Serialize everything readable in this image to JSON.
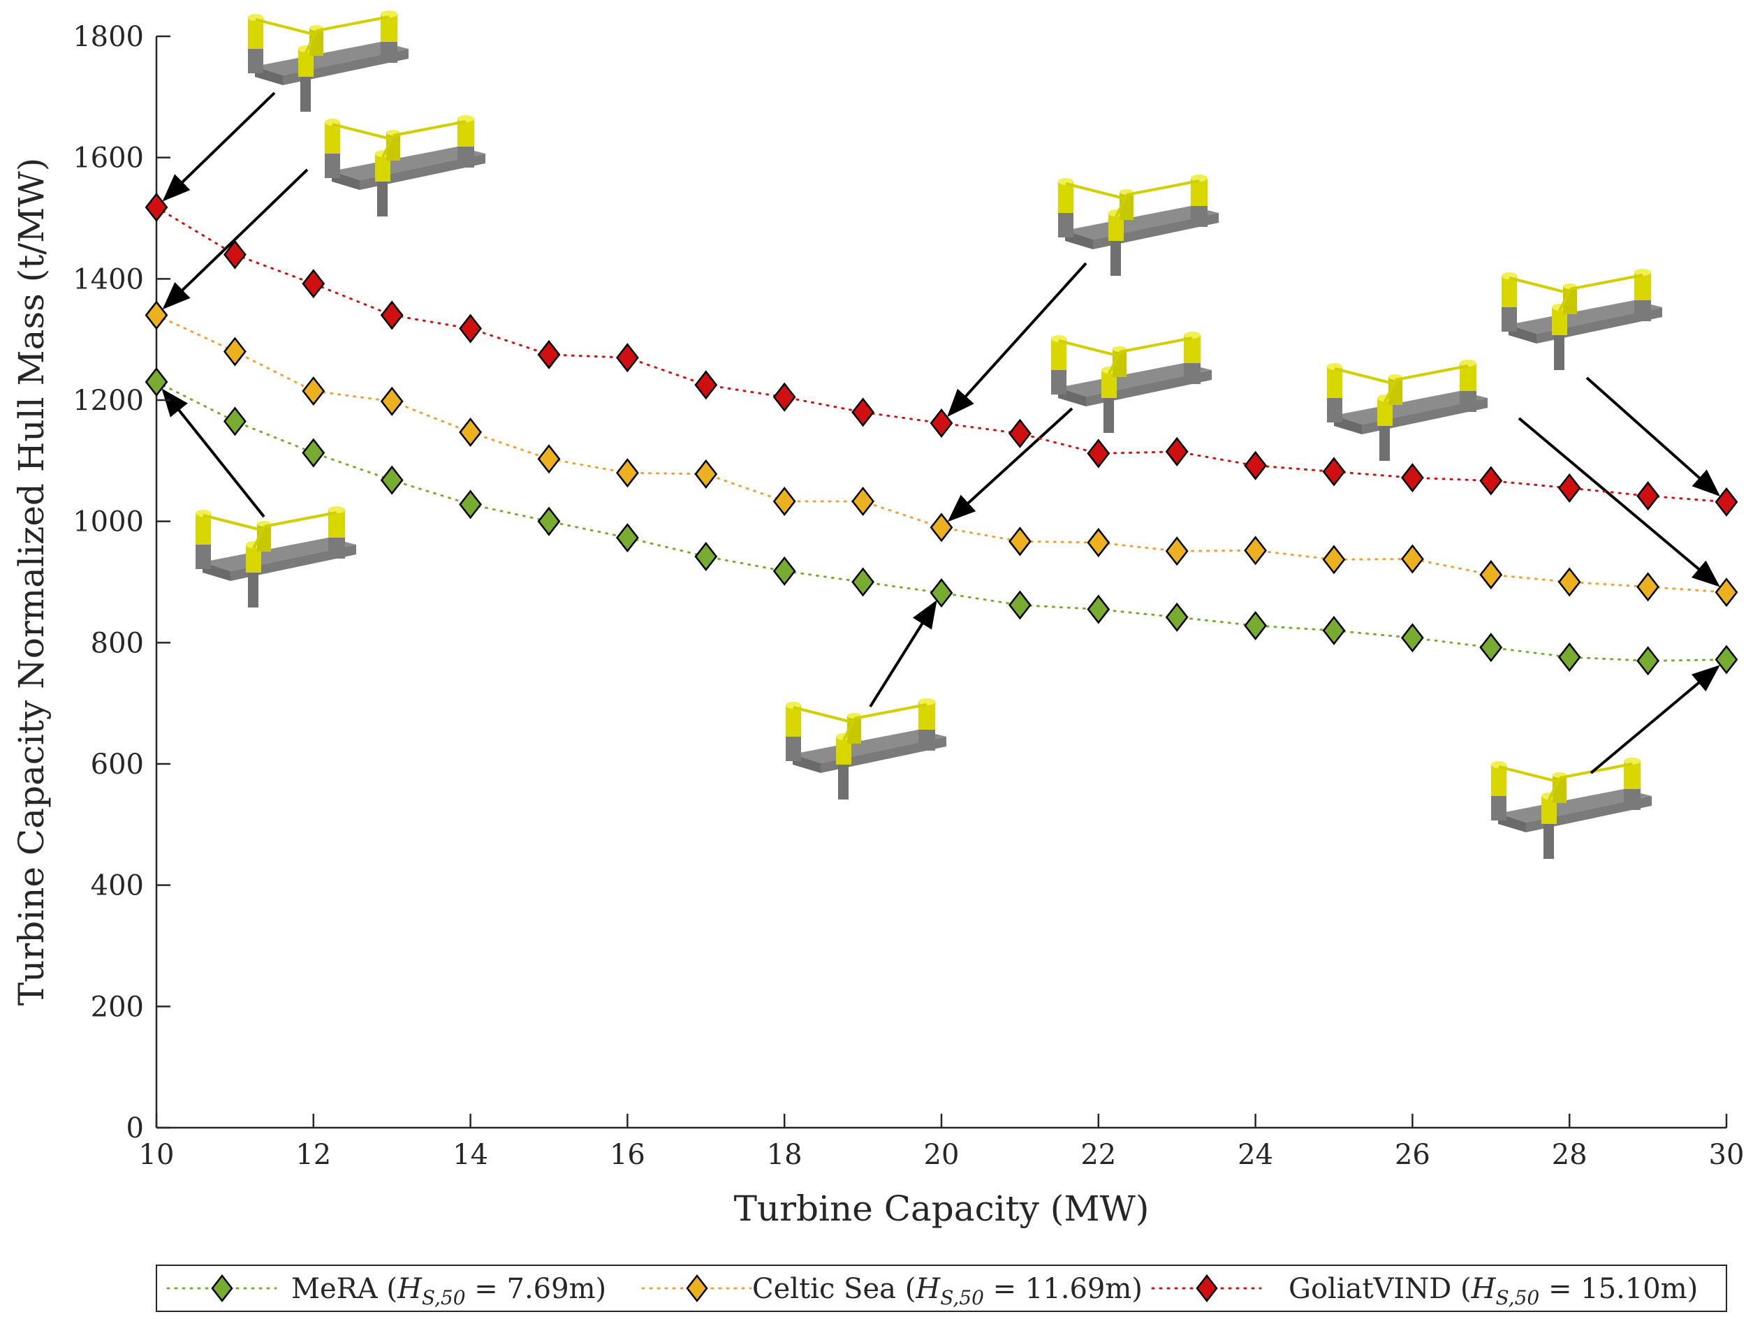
{
  "chart_data": {
    "type": "line",
    "title": "",
    "xlabel": "Turbine Capacity (MW)",
    "ylabel": "Turbine Capacity Normalized Hull Mass (t/MW)",
    "xlim": [
      10,
      30
    ],
    "ylim": [
      0,
      1800
    ],
    "xticks": [
      10,
      12,
      14,
      16,
      18,
      20,
      22,
      24,
      26,
      28,
      30
    ],
    "yticks": [
      0,
      200,
      400,
      600,
      800,
      1000,
      1200,
      1400,
      1600,
      1800
    ],
    "grid": false,
    "legend_position": "bottom",
    "x": [
      10,
      11,
      12,
      13,
      14,
      15,
      16,
      17,
      18,
      19,
      20,
      21,
      22,
      23,
      24,
      25,
      26,
      27,
      28,
      29,
      30
    ],
    "series": [
      {
        "name": "MeRA",
        "hs_label": "H_{S,50} = 7.69m",
        "color": "#77ac30",
        "line_color": "#77ac30",
        "values": [
          1230,
          1165,
          1113,
          1068,
          1028,
          1000,
          973,
          942,
          918,
          900,
          882,
          862,
          855,
          842,
          828,
          820,
          808,
          792,
          776,
          770,
          772
        ]
      },
      {
        "name": "Celtic Sea",
        "hs_label": "H_{S,50} = 11.69m",
        "color": "#edb120",
        "line_color": "#f0a030",
        "values": [
          1340,
          1280,
          1215,
          1198,
          1147,
          1103,
          1080,
          1078,
          1033,
          1033,
          990,
          967,
          965,
          951,
          952,
          937,
          938,
          912,
          900,
          892,
          883
        ]
      },
      {
        "name": "GoliatVIND",
        "hs_label": "H_{S,50} = 15.10m",
        "color": "#d01010",
        "line_color": "#d01010",
        "values": [
          1518,
          1440,
          1392,
          1340,
          1318,
          1275,
          1270,
          1225,
          1205,
          1180,
          1162,
          1145,
          1112,
          1115,
          1092,
          1082,
          1072,
          1067,
          1055,
          1042,
          1032
        ]
      }
    ],
    "annotations": [
      {
        "label": "platform-render",
        "target_x": 10,
        "target_y": 1518
      },
      {
        "label": "platform-render",
        "target_x": 10,
        "target_y": 1340
      },
      {
        "label": "platform-render",
        "target_x": 10,
        "target_y": 1230
      },
      {
        "label": "platform-render",
        "target_x": 20,
        "target_y": 1162
      },
      {
        "label": "platform-render",
        "target_x": 20,
        "target_y": 990
      },
      {
        "label": "platform-render",
        "target_x": 20,
        "target_y": 882
      },
      {
        "label": "platform-render",
        "target_x": 30,
        "target_y": 1032
      },
      {
        "label": "platform-render",
        "target_x": 30,
        "target_y": 883
      },
      {
        "label": "platform-render",
        "target_x": 30,
        "target_y": 772
      }
    ]
  }
}
